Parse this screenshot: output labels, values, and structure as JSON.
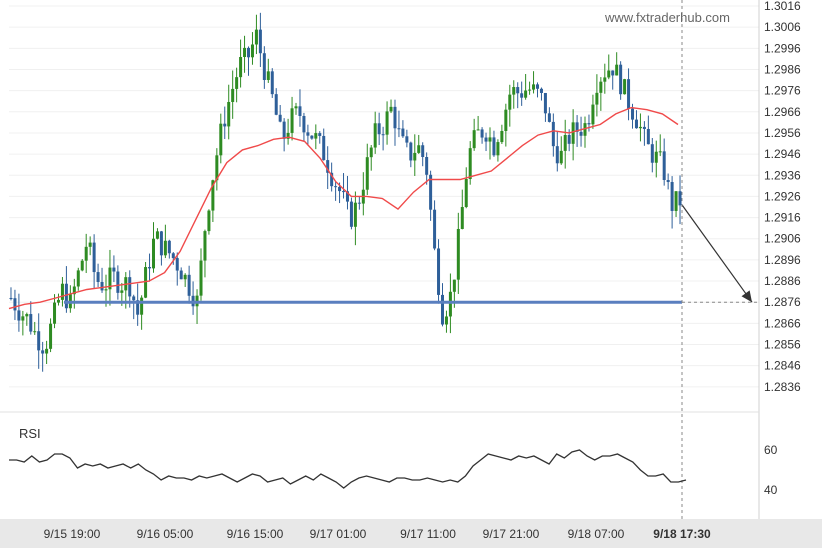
{
  "watermark": "www.fxtraderhub.com",
  "colors": {
    "bull": "#2e8b22",
    "bear": "#2e5f99",
    "ma": "#f04a4a",
    "level": "#5a7fbf",
    "rsi": "#333333",
    "axis_bg": "#e8e8e8"
  },
  "chart_data": [
    {
      "type": "candlestick",
      "ylim": [
        1.2826,
        1.3016
      ],
      "y_ticks": [
        "1.3016",
        "1.3006",
        "1.2996",
        "1.2986",
        "1.2976",
        "1.2966",
        "1.2956",
        "1.2946",
        "1.2936",
        "1.2926",
        "1.2916",
        "1.2906",
        "1.2896",
        "1.2886",
        "1.2876",
        "1.2866",
        "1.2856",
        "1.2846",
        "1.2836"
      ],
      "x_ticks": [
        "9/15 19:00",
        "9/16 05:00",
        "9/16 15:00",
        "9/17 01:00",
        "9/17 11:00",
        "9/17 21:00",
        "9/18 07:00"
      ],
      "x_current": "9/18 17:30",
      "support_level": 1.2876,
      "projection": {
        "from": 1.2922,
        "to": 1.2876
      },
      "trend": [
        1.2878,
        1.2872,
        1.2868,
        1.286,
        1.2855,
        1.2868,
        1.2882,
        1.2875,
        1.289,
        1.2905,
        1.2887,
        1.2884,
        1.2888,
        1.2885,
        1.2885,
        1.287,
        1.289,
        1.2907,
        1.2902,
        1.2898,
        1.2892,
        1.2884,
        1.2876,
        1.2915,
        1.294,
        1.296,
        1.2975,
        1.2988,
        1.2992,
        1.3002,
        1.2985,
        1.297,
        1.2952,
        1.2962,
        1.2966,
        1.2958,
        1.2953,
        1.2946,
        1.2935,
        1.2927,
        1.2915,
        1.2923,
        1.294,
        1.2955,
        1.296,
        1.2968,
        1.2952,
        1.2945,
        1.295,
        1.2942,
        1.29,
        1.287,
        1.288,
        1.291,
        1.2945,
        1.2955,
        1.2958,
        1.295,
        1.2962,
        1.2976,
        1.2975,
        1.2977,
        1.2975,
        1.297,
        1.295,
        1.2945,
        1.2955,
        1.2958,
        1.296,
        1.298,
        1.2985,
        1.2988,
        1.298,
        1.297,
        1.2962,
        1.295,
        1.2945,
        1.294,
        1.2922,
        1.2924
      ],
      "moving_average": [
        1.2873,
        1.2875,
        1.2876,
        1.2878,
        1.288,
        1.2882,
        1.2883,
        1.2884,
        1.2885,
        1.2886,
        1.289,
        1.29,
        1.2915,
        1.293,
        1.2942,
        1.2948,
        1.295,
        1.2953,
        1.2954,
        1.2952,
        1.2944,
        1.2933,
        1.2926,
        1.2926,
        1.2925,
        1.292,
        1.2928,
        1.2934,
        1.2934,
        1.2934,
        1.2936,
        1.2938,
        1.2944,
        1.295,
        1.2955,
        1.2957,
        1.2956,
        1.2958,
        1.296,
        1.2965,
        1.2968,
        1.2967,
        1.2965,
        1.296
      ],
      "rsi_ticks": [
        "60",
        "40"
      ],
      "rsi_ylim": [
        30,
        75
      ],
      "rsi": [
        55,
        55,
        54,
        57,
        54,
        55,
        58,
        58,
        56,
        51,
        53,
        52,
        53,
        51,
        52,
        53,
        51,
        53,
        50,
        48,
        45,
        47,
        46,
        46,
        45,
        47,
        46,
        47,
        48,
        46,
        44,
        46,
        48,
        47,
        44,
        45,
        46,
        43,
        45,
        47,
        45,
        48,
        46,
        44,
        41,
        44,
        46,
        47,
        46,
        45,
        44,
        46,
        46,
        45,
        45,
        46,
        45,
        44,
        45,
        44,
        47,
        52,
        55,
        58,
        57,
        56,
        55,
        57,
        56,
        57,
        55,
        53,
        58,
        56,
        59,
        60,
        57,
        55,
        57,
        57,
        58,
        56,
        54,
        50,
        47,
        47,
        48,
        44,
        44,
        45
      ]
    }
  ]
}
